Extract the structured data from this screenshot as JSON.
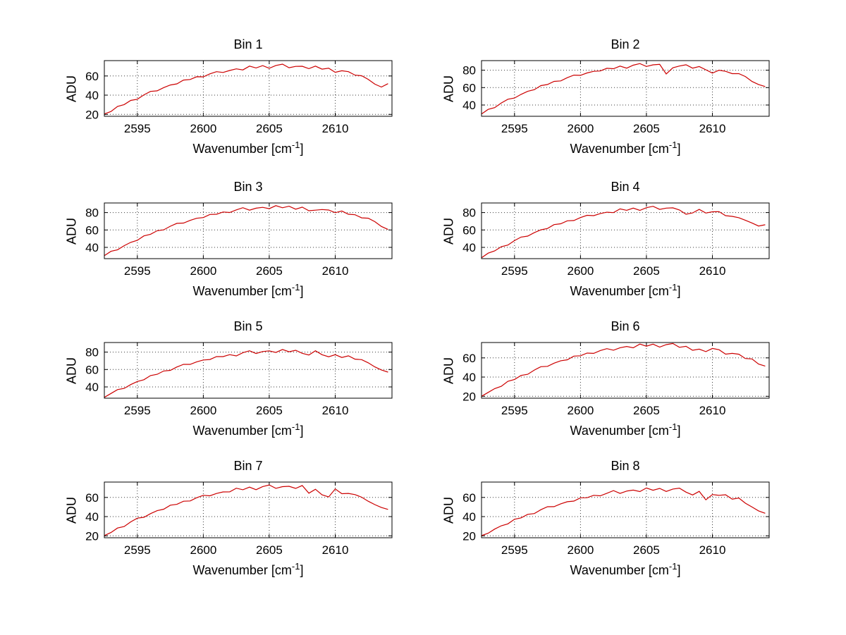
{
  "figure": {
    "background": "#ffffff"
  },
  "labels": {
    "ylabel": "ADU",
    "xlabel_prefix": "Wavenumber [cm",
    "xlabel_sup": "-1",
    "xlabel_suffix": "]"
  },
  "chart_data": [
    {
      "type": "line",
      "title": "Bin 1",
      "ylabel": "ADU",
      "xlabel": "Wavenumber [cm-1]",
      "color": "#cc0000",
      "grid": true,
      "legend": "none",
      "xlim": [
        2592.5,
        2614.3
      ],
      "ylim": [
        18,
        76
      ],
      "x_ticks": [
        2595,
        2600,
        2605,
        2610
      ],
      "y_ticks": [
        20,
        40,
        60
      ],
      "x_start": 2592.5,
      "x_step": 0.5,
      "values": [
        20.4,
        23.0,
        28.3,
        30.2,
        34.5,
        35.8,
        40.3,
        43.9,
        44.5,
        47.9,
        50.6,
        51.8,
        55.7,
        56.3,
        59.2,
        59.1,
        62.2,
        64.5,
        63.7,
        65.7,
        67.4,
        66.3,
        70.3,
        68.4,
        70.8,
        68.0,
        70.9,
        72.3,
        68.6,
        70.0,
        70.1,
        67.6,
        70.3,
        67.1,
        68.1,
        63.8,
        65.4,
        64.5,
        60.9,
        60.2,
        56.5,
        51.5,
        48.5,
        52.0
      ]
    },
    {
      "type": "line",
      "title": "Bin 2",
      "ylabel": "ADU",
      "xlabel": "Wavenumber [cm-1]",
      "color": "#cc0000",
      "grid": true,
      "legend": "none",
      "xlim": [
        2592.5,
        2614.3
      ],
      "ylim": [
        27,
        91
      ],
      "x_ticks": [
        2595,
        2600,
        2605,
        2610
      ],
      "y_ticks": [
        40,
        60,
        80
      ],
      "x_start": 2592.5,
      "x_step": 0.5,
      "values": [
        29.7,
        34.9,
        37.0,
        42.3,
        46.6,
        48.0,
        52.2,
        55.7,
        57.6,
        62.2,
        63.5,
        67.1,
        67.7,
        71.4,
        74.3,
        74.1,
        76.8,
        78.7,
        79.1,
        82.2,
        81.7,
        84.7,
        82.3,
        85.7,
        87.6,
        84.3,
        86.1,
        86.7,
        75.6,
        82.7,
        84.8,
        86.2,
        82.3,
        84.2,
        80.5,
        76.7,
        80.0,
        78.7,
        76.0,
        76.0,
        72.7,
        67.0,
        63.5,
        61.2
      ]
    },
    {
      "type": "line",
      "title": "Bin 3",
      "ylabel": "ADU",
      "xlabel": "Wavenumber [cm-1]",
      "color": "#cc0000",
      "grid": true,
      "legend": "none",
      "xlim": [
        2592.5,
        2614.3
      ],
      "ylim": [
        27,
        91
      ],
      "x_ticks": [
        2595,
        2600,
        2605,
        2610
      ],
      "y_ticks": [
        40,
        60,
        80
      ],
      "x_start": 2592.5,
      "x_step": 0.5,
      "values": [
        30.5,
        35.4,
        37.2,
        41.9,
        45.7,
        48.1,
        53.2,
        55.0,
        59.1,
        60.1,
        64.3,
        67.6,
        67.9,
        71.0,
        73.4,
        74.2,
        77.8,
        78.0,
        80.6,
        80.1,
        83.1,
        85.6,
        82.7,
        85.0,
        86.0,
        84.4,
        87.9,
        85.5,
        87.3,
        83.9,
        86.2,
        82.1,
        82.7,
        83.5,
        82.9,
        79.8,
        81.8,
        78.0,
        77.5,
        73.9,
        73.5,
        69.5,
        64.0,
        60.5
      ]
    },
    {
      "type": "line",
      "title": "Bin 4",
      "ylabel": "ADU",
      "xlabel": "Wavenumber [cm-1]",
      "color": "#cc0000",
      "grid": true,
      "legend": "none",
      "xlim": [
        2592.5,
        2614.3
      ],
      "ylim": [
        27,
        91
      ],
      "x_ticks": [
        2595,
        2600,
        2605,
        2610
      ],
      "y_ticks": [
        40,
        60,
        80
      ],
      "x_start": 2592.5,
      "x_step": 0.5,
      "values": [
        28.0,
        33.3,
        35.9,
        40.8,
        42.6,
        47.7,
        51.8,
        52.9,
        56.9,
        60.1,
        61.7,
        66.1,
        67.1,
        70.5,
        70.8,
        74.2,
        76.8,
        76.4,
        78.8,
        80.4,
        79.9,
        84.2,
        82.6,
        85.1,
        82.5,
        85.6,
        87.2,
        83.6,
        85.1,
        85.4,
        83.0,
        78.0,
        79.6,
        83.6,
        79.4,
        80.9,
        81.0,
        76.4,
        75.6,
        74.1,
        71.1,
        68.0,
        64.5,
        66.0
      ]
    },
    {
      "type": "line",
      "title": "Bin 5",
      "ylabel": "ADU",
      "xlabel": "Wavenumber [cm-1]",
      "color": "#cc0000",
      "grid": true,
      "legend": "none",
      "xlim": [
        2592.5,
        2614.3
      ],
      "ylim": [
        27,
        91
      ],
      "x_ticks": [
        2595,
        2600,
        2605,
        2610
      ],
      "y_ticks": [
        40,
        60,
        80
      ],
      "x_start": 2592.5,
      "x_step": 0.5,
      "values": [
        28.0,
        32.4,
        36.9,
        38.3,
        42.6,
        46.2,
        48.2,
        53.0,
        54.5,
        58.3,
        59.0,
        62.9,
        65.9,
        65.9,
        68.8,
        70.9,
        71.5,
        74.8,
        74.8,
        77.1,
        75.6,
        79.3,
        81.5,
        78.4,
        80.6,
        81.4,
        79.6,
        83.0,
        80.4,
        82.1,
        78.6,
        76.7,
        81.5,
        77.0,
        74.6,
        77.0,
        73.8,
        75.7,
        71.9,
        71.3,
        67.7,
        63.0,
        59.5,
        57.0
      ]
    },
    {
      "type": "line",
      "title": "Bin 6",
      "ylabel": "ADU",
      "xlabel": "Wavenumber [cm-1]",
      "color": "#cc0000",
      "grid": true,
      "legend": "none",
      "xlim": [
        2592.5,
        2614.3
      ],
      "ylim": [
        18,
        76
      ],
      "x_ticks": [
        2595,
        2600,
        2605,
        2610
      ],
      "y_ticks": [
        20,
        40,
        60
      ],
      "x_start": 2592.5,
      "x_step": 0.5,
      "values": [
        20.0,
        24.0,
        28.0,
        30.4,
        35.6,
        37.5,
        41.7,
        42.9,
        47.3,
        50.8,
        51.2,
        54.5,
        57.0,
        58.0,
        61.8,
        62.2,
        65.0,
        64.7,
        67.6,
        69.6,
        68.0,
        70.6,
        71.9,
        70.5,
        74.4,
        72.2,
        74.3,
        71.2,
        73.8,
        75.0,
        71.0,
        72.0,
        67.9,
        69.1,
        66.5,
        69.8,
        68.5,
        63.9,
        64.7,
        63.8,
        59.3,
        58.9,
        53.5,
        51.5
      ]
    },
    {
      "type": "line",
      "title": "Bin 7",
      "ylabel": "ADU",
      "xlabel": "Wavenumber [cm-1]",
      "color": "#cc0000",
      "grid": true,
      "legend": "none",
      "xlim": [
        2592.5,
        2614.3
      ],
      "ylim": [
        18,
        76
      ],
      "x_ticks": [
        2595,
        2600,
        2605,
        2610
      ],
      "y_ticks": [
        20,
        40,
        60
      ],
      "x_start": 2592.5,
      "x_step": 0.5,
      "values": [
        20.3,
        23.4,
        28.1,
        29.7,
        34.5,
        38.4,
        39.3,
        43.1,
        46.2,
        47.7,
        51.9,
        52.8,
        56.0,
        56.3,
        59.7,
        62.2,
        61.7,
        64.1,
        65.7,
        65.8,
        69.6,
        68.0,
        70.7,
        68.1,
        71.3,
        73.0,
        69.5,
        71.2,
        71.6,
        69.4,
        72.4,
        64.4,
        68.5,
        62.7,
        60.5,
        68.8,
        63.9,
        64.2,
        62.9,
        60.2,
        56.0,
        52.5,
        49.5,
        47.5
      ]
    },
    {
      "type": "line",
      "title": "Bin 8",
      "ylabel": "ADU",
      "xlabel": "Wavenumber [cm-1]",
      "color": "#cc0000",
      "grid": true,
      "legend": "none",
      "xlim": [
        2592.5,
        2614.3
      ],
      "ylim": [
        18,
        76
      ],
      "x_ticks": [
        2595,
        2600,
        2605,
        2610
      ],
      "y_ticks": [
        20,
        40,
        60
      ],
      "x_start": 2592.5,
      "x_step": 0.5,
      "values": [
        20.2,
        22.7,
        27.0,
        30.5,
        32.5,
        37.2,
        38.7,
        42.4,
        43.2,
        47.2,
        50.3,
        50.4,
        53.3,
        55.5,
        56.2,
        59.6,
        59.7,
        62.2,
        61.7,
        64.3,
        67.1,
        64.2,
        66.6,
        67.6,
        66.1,
        69.8,
        67.5,
        69.4,
        66.2,
        68.7,
        69.7,
        65.5,
        62.6,
        66.3,
        57.5,
        63.0,
        62.2,
        62.8,
        58.2,
        59.4,
        54.0,
        50.0,
        46.0,
        43.5
      ]
    }
  ]
}
